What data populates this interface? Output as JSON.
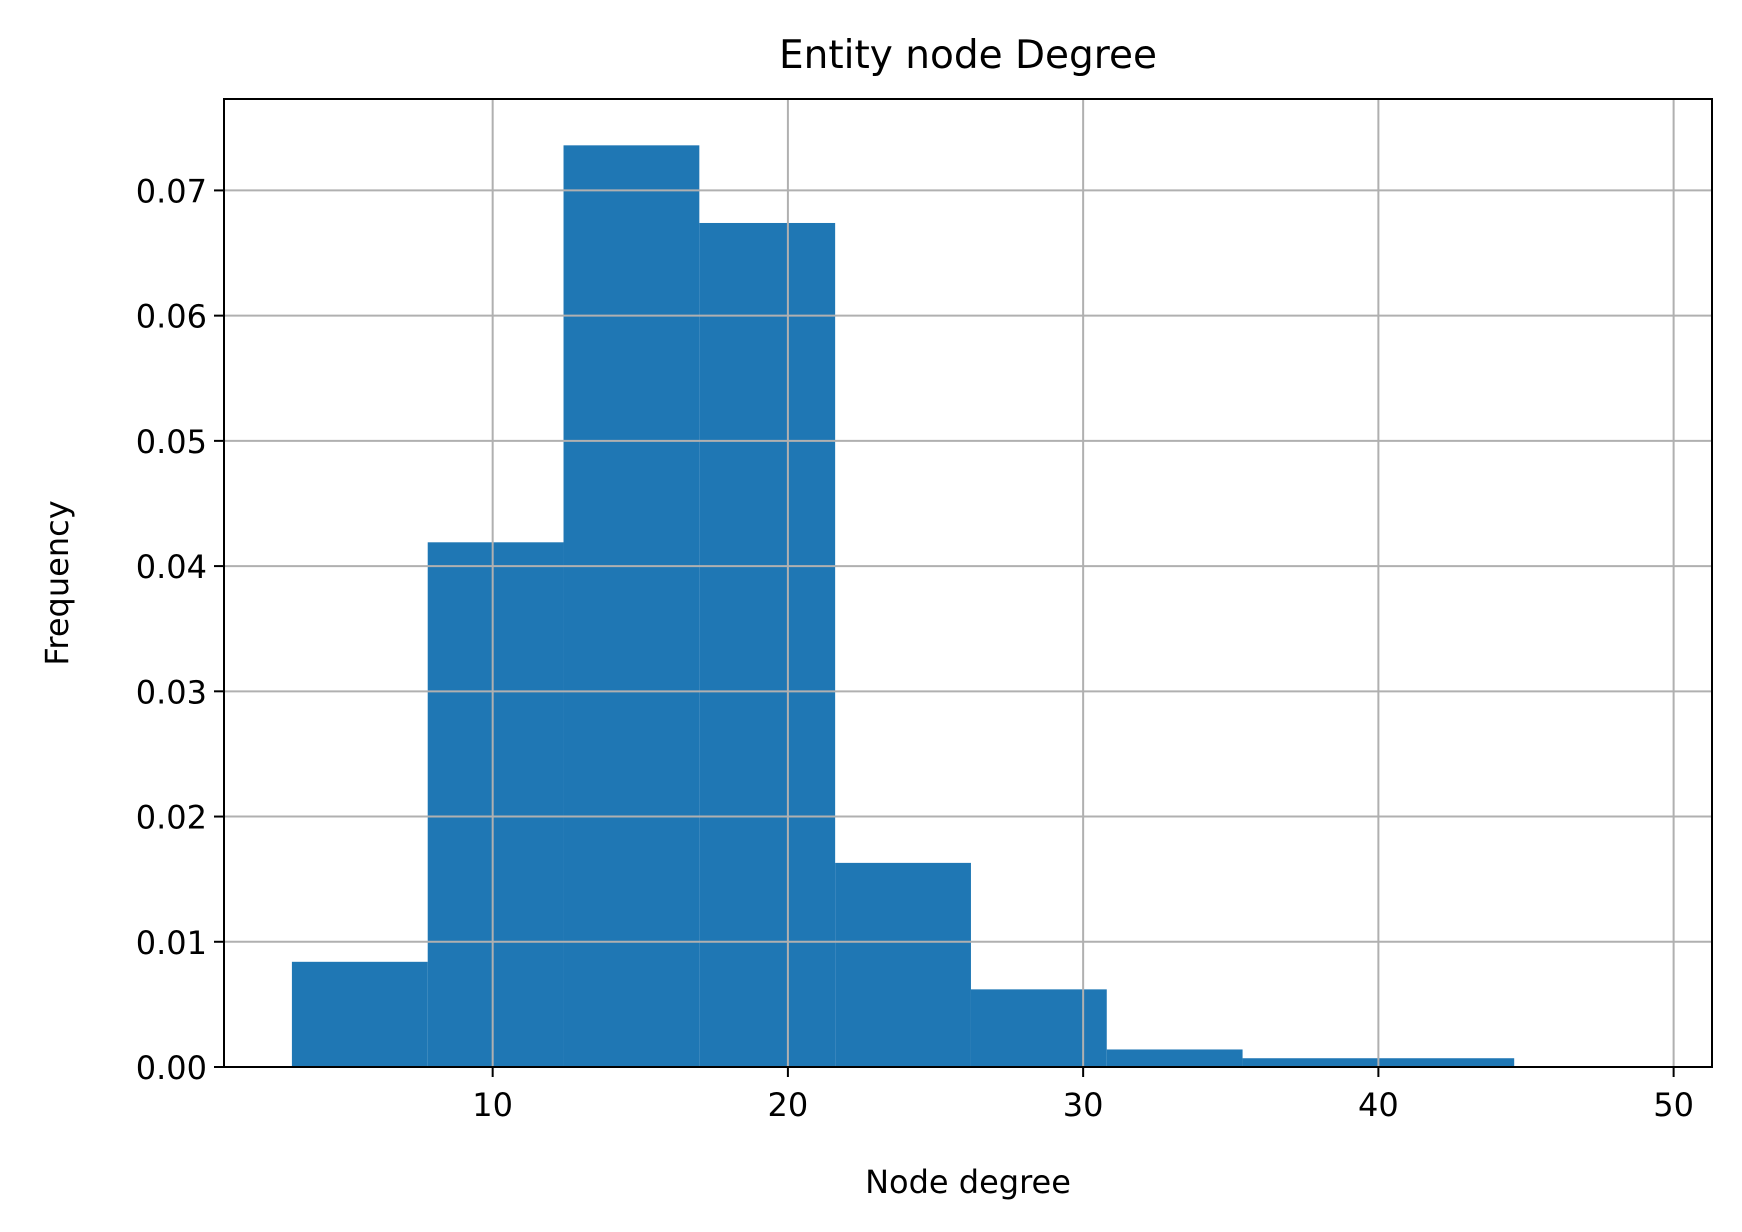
{
  "chart_data": {
    "type": "bar",
    "histogram": true,
    "title": "Entity node Degree",
    "xlabel": "Node degree",
    "ylabel": "Frequency",
    "bins": [
      {
        "x0": 3.2,
        "x1": 7.8,
        "value": 0.0084
      },
      {
        "x0": 7.8,
        "x1": 12.4,
        "value": 0.0419
      },
      {
        "x0": 12.4,
        "x1": 17.0,
        "value": 0.0736
      },
      {
        "x0": 17.0,
        "x1": 21.6,
        "value": 0.0674
      },
      {
        "x0": 21.6,
        "x1": 26.2,
        "value": 0.0163
      },
      {
        "x0": 26.2,
        "x1": 30.8,
        "value": 0.0062
      },
      {
        "x0": 30.8,
        "x1": 35.4,
        "value": 0.0014
      },
      {
        "x0": 35.4,
        "x1": 40.0,
        "value": 0.0007
      },
      {
        "x0": 40.0,
        "x1": 44.6,
        "value": 0.0007
      }
    ],
    "xlim": [
      0.9,
      51.3
    ],
    "ylim": [
      0,
      0.0773
    ],
    "xticks": [
      10,
      20,
      30,
      40,
      50
    ],
    "xtick_labels": [
      "10",
      "20",
      "30",
      "40",
      "50"
    ],
    "yticks": [
      0,
      0.01,
      0.02,
      0.03,
      0.04,
      0.05,
      0.06,
      0.07
    ],
    "ytick_labels": [
      "0.00",
      "0.01",
      "0.02",
      "0.03",
      "0.04",
      "0.05",
      "0.06",
      "0.07"
    ],
    "grid": true,
    "bar_color": "#1f77b4",
    "grid_color": "#b0b0b0"
  }
}
